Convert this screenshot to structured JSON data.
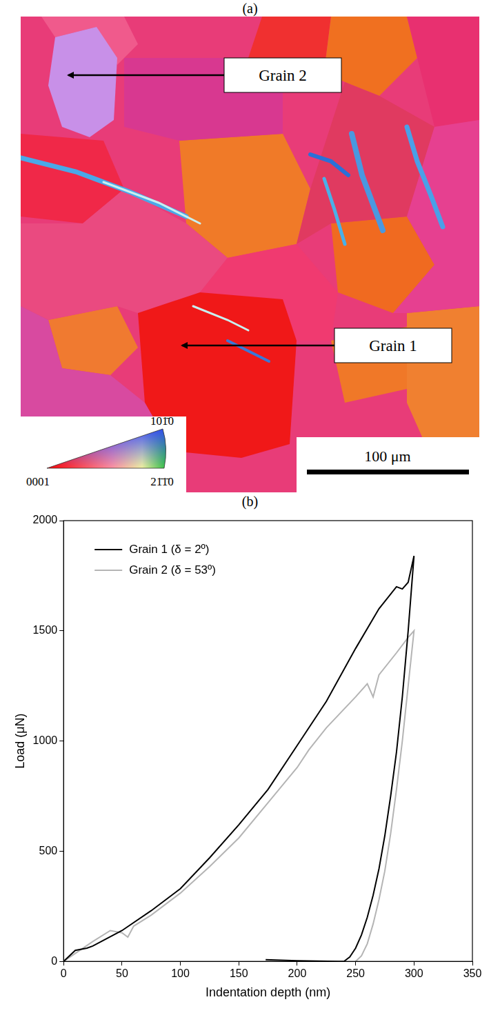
{
  "panel_a": {
    "label": "(a)",
    "annotations": [
      "Grain 2",
      "Grain 1"
    ],
    "scale_bar": "100 μm",
    "color_key": {
      "top_right": "101̄0",
      "left": "0001",
      "bottom_right": "21̄1̄0"
    }
  },
  "panel_b": {
    "label": "(b)"
  },
  "chart_data": {
    "type": "line",
    "x_label": "Indentation depth (nm)",
    "y_label": "Load (μN)",
    "xlim": [
      0,
      350
    ],
    "xticks": [
      0,
      50,
      100,
      150,
      200,
      250,
      300,
      350
    ],
    "ylim": [
      0,
      2000
    ],
    "yticks": [
      0,
      500,
      1000,
      1500,
      2000
    ],
    "grid": false,
    "legend": "upper left",
    "series": [
      {
        "name": "Grain 1 (δ = 2º)",
        "color": "#000000",
        "x": [
          0,
          10,
          20,
          25,
          50,
          75,
          100,
          125,
          150,
          175,
          200,
          225,
          250,
          270,
          285,
          290,
          295,
          300,
          300,
          295,
          290,
          285,
          280,
          275,
          270,
          265,
          260,
          255,
          250,
          245,
          240,
          235,
          200,
          173
        ],
        "values": [
          0,
          50,
          60,
          70,
          140,
          230,
          330,
          470,
          620,
          780,
          980,
          1180,
          1420,
          1600,
          1700,
          1690,
          1720,
          1840,
          1840,
          1500,
          1200,
          950,
          750,
          570,
          420,
          300,
          200,
          120,
          60,
          20,
          0,
          0,
          3,
          8
        ]
      },
      {
        "name": "Grain 2 (δ = 53º)",
        "color": "#b4b4b4",
        "x": [
          0,
          25,
          40,
          50,
          55,
          60,
          75,
          100,
          125,
          150,
          175,
          200,
          210,
          225,
          250,
          260,
          265,
          270,
          285,
          295,
          300,
          300,
          295,
          290,
          285,
          280,
          275,
          270,
          265,
          260,
          255,
          250
        ],
        "values": [
          0,
          90,
          140,
          130,
          110,
          160,
          210,
          310,
          430,
          560,
          720,
          880,
          960,
          1060,
          1200,
          1260,
          1200,
          1300,
          1400,
          1470,
          1500,
          1500,
          1250,
          1000,
          780,
          580,
          410,
          280,
          170,
          80,
          25,
          0
        ]
      }
    ]
  }
}
